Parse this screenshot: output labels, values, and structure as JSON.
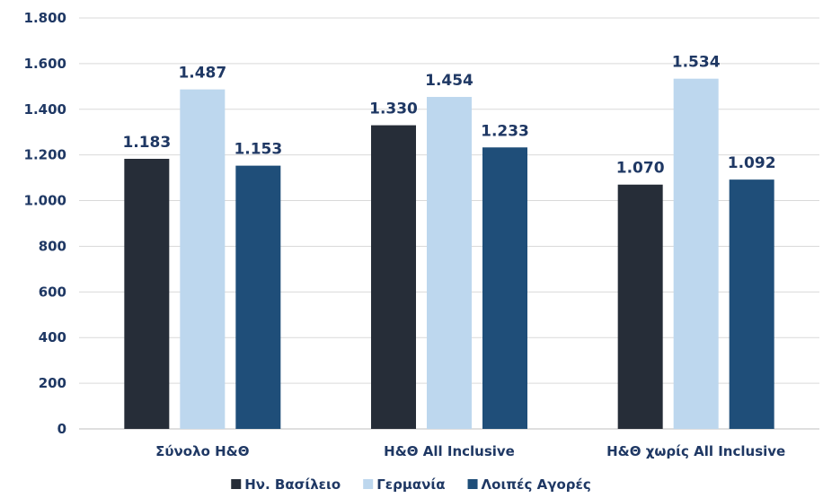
{
  "chart_data": {
    "type": "bar",
    "categories": [
      "Σύνολο Η&Θ",
      "Η&Θ All Inclusive",
      "Η&Θ χωρίς All Inclusive"
    ],
    "series": [
      {
        "name": "Ην. Βασίλειο",
        "values": [
          1183,
          1330,
          1070
        ],
        "labels": [
          "1.183",
          "1.330",
          "1.070"
        ],
        "color": "#262d38"
      },
      {
        "name": "Γερμανία",
        "values": [
          1487,
          1454,
          1534
        ],
        "labels": [
          "1.487",
          "1.454",
          "1.534"
        ],
        "color": "#bdd7ee"
      },
      {
        "name": "Λοιπές Αγορές",
        "values": [
          1153,
          1233,
          1092
        ],
        "labels": [
          "1.153",
          "1.233",
          "1.092"
        ],
        "color": "#1f4e79"
      }
    ],
    "ylim": [
      0,
      1800
    ],
    "yticks": [
      0,
      200,
      400,
      600,
      800,
      1000,
      1200,
      1400,
      1600,
      1800
    ],
    "ytick_labels": [
      "0",
      "200",
      "400",
      "600",
      "800",
      "1.000",
      "1.200",
      "1.400",
      "1.600",
      "1.800"
    ],
    "grid": true,
    "legend_position": "bottom",
    "text_color": "#1f3864",
    "grid_color": "#d9d9d9"
  }
}
